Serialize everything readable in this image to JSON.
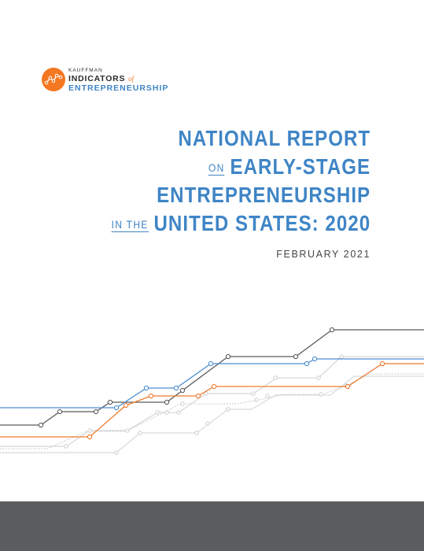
{
  "logo": {
    "small_text": "KAUFFMAN",
    "line1": "INDICATORS",
    "line1_of": "of",
    "line2": "ENTREPRENEURSHIP",
    "mark_color": "#f47721"
  },
  "title": {
    "line1": "NATIONAL REPORT",
    "line2_prefix": "ON",
    "line2": "EARLY-STAGE",
    "line3": "ENTREPRENEURSHIP",
    "line4_prefix": "IN THE",
    "line4": "UNITED STATES: 2020",
    "color": "#3f85c6"
  },
  "date": "FEBRUARY 2021",
  "colors": {
    "dark_line": "#555555",
    "blue_line": "#4a8fcf",
    "orange_line": "#ef7a2e",
    "light_line": "#cfcfcf",
    "footer": "#5b5c5e"
  }
}
